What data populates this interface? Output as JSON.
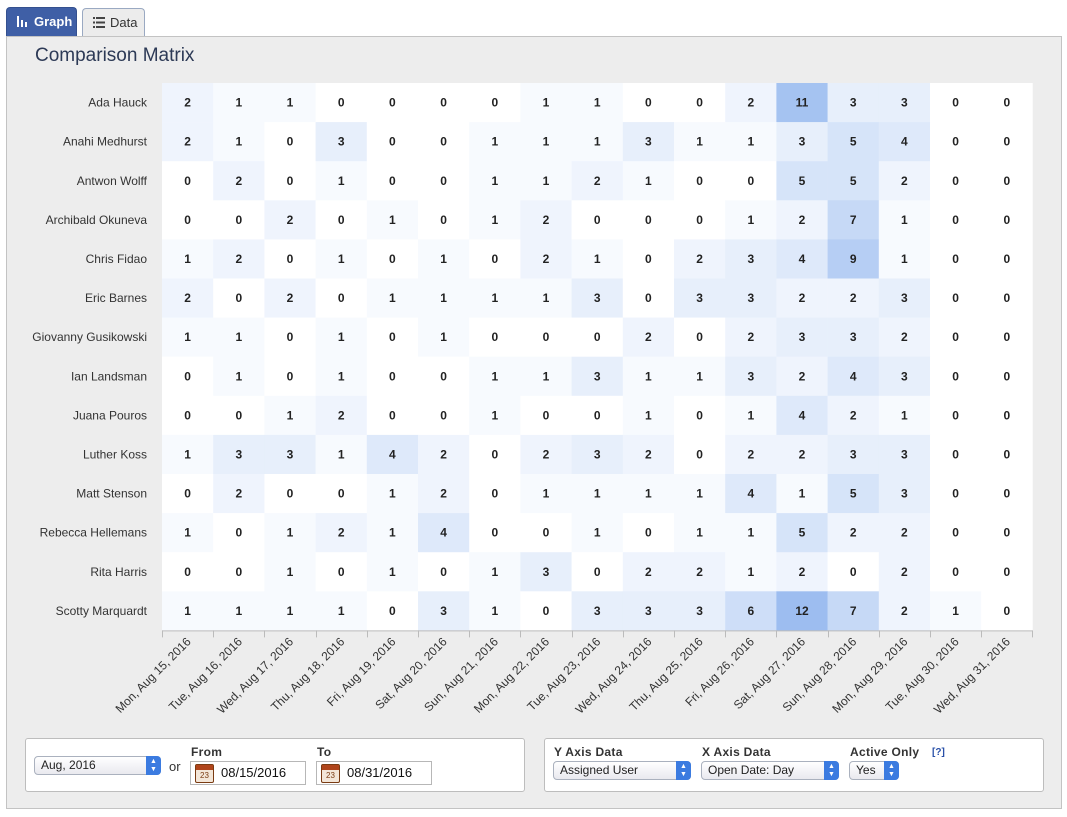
{
  "tabs": [
    {
      "label": "Graph",
      "icon": "bar-chart-icon",
      "active": true
    },
    {
      "label": "Data",
      "icon": "list-icon",
      "active": false
    }
  ],
  "colors": {
    "cell_max": "#9dbdf0",
    "cell_min": "#ffffff",
    "active_tab": "#3f5fa6",
    "select_arrow": "#3b7be0"
  },
  "chart_data": {
    "type": "heatmap",
    "title": "Comparison Matrix",
    "rows": [
      "Ada Hauck",
      "Anahi Medhurst",
      "Antwon Wolff",
      "Archibald Okuneva",
      "Chris Fidao",
      "Eric Barnes",
      "Giovanny Gusikowski",
      "Ian Landsman",
      "Juana Pouros",
      "Luther Koss",
      "Matt Stenson",
      "Rebecca Hellemans",
      "Rita Harris",
      "Scotty Marquardt"
    ],
    "columns": [
      "Mon, Aug 15, 2016",
      "Tue, Aug 16, 2016",
      "Wed, Aug 17, 2016",
      "Thu, Aug 18, 2016",
      "Fri, Aug 19, 2016",
      "Sat, Aug 20, 2016",
      "Sun, Aug 21, 2016",
      "Mon, Aug 22, 2016",
      "Tue, Aug 23, 2016",
      "Wed, Aug 24, 2016",
      "Thu, Aug 25, 2016",
      "Fri, Aug 26, 2016",
      "Sat, Aug 27, 2016",
      "Sun, Aug 28, 2016",
      "Mon, Aug 29, 2016",
      "Tue, Aug 30, 2016",
      "Wed, Aug 31, 2016"
    ],
    "values": [
      [
        2,
        1,
        1,
        0,
        0,
        0,
        0,
        1,
        1,
        0,
        0,
        2,
        11,
        3,
        3,
        0,
        0
      ],
      [
        2,
        1,
        0,
        3,
        0,
        0,
        1,
        1,
        1,
        3,
        1,
        1,
        3,
        5,
        4,
        0,
        0
      ],
      [
        0,
        2,
        0,
        1,
        0,
        0,
        1,
        1,
        2,
        1,
        0,
        0,
        5,
        5,
        2,
        0,
        0
      ],
      [
        0,
        0,
        2,
        0,
        1,
        0,
        1,
        2,
        0,
        0,
        0,
        1,
        2,
        7,
        1,
        0,
        0
      ],
      [
        1,
        2,
        0,
        1,
        0,
        1,
        0,
        2,
        1,
        0,
        2,
        3,
        4,
        9,
        1,
        0,
        0
      ],
      [
        2,
        0,
        2,
        0,
        1,
        1,
        1,
        1,
        3,
        0,
        3,
        3,
        2,
        2,
        3,
        0,
        0
      ],
      [
        1,
        1,
        0,
        1,
        0,
        1,
        0,
        0,
        0,
        2,
        0,
        2,
        3,
        3,
        2,
        0,
        0
      ],
      [
        0,
        1,
        0,
        1,
        0,
        0,
        1,
        1,
        3,
        1,
        1,
        3,
        2,
        4,
        3,
        0,
        0
      ],
      [
        0,
        0,
        1,
        2,
        0,
        0,
        1,
        0,
        0,
        1,
        0,
        1,
        4,
        2,
        1,
        0,
        0
      ],
      [
        1,
        3,
        3,
        1,
        4,
        2,
        0,
        2,
        3,
        2,
        0,
        2,
        2,
        3,
        3,
        0,
        0
      ],
      [
        0,
        2,
        0,
        0,
        1,
        2,
        0,
        1,
        1,
        1,
        1,
        4,
        1,
        5,
        3,
        0,
        0
      ],
      [
        1,
        0,
        1,
        2,
        1,
        4,
        0,
        0,
        1,
        0,
        1,
        1,
        5,
        2,
        2,
        0,
        0
      ],
      [
        0,
        0,
        1,
        0,
        1,
        0,
        1,
        3,
        0,
        2,
        2,
        1,
        2,
        0,
        2,
        0,
        0
      ],
      [
        1,
        1,
        1,
        1,
        0,
        3,
        1,
        0,
        3,
        3,
        3,
        6,
        12,
        7,
        2,
        1,
        0
      ]
    ]
  },
  "controls": {
    "period": {
      "value": "Aug, 2016"
    },
    "or_label": "or",
    "from": {
      "label": "From",
      "value": "08/15/2016",
      "cal_day": "23"
    },
    "to": {
      "label": "To",
      "value": "08/31/2016",
      "cal_day": "23"
    },
    "y_axis": {
      "label": "Y Axis Data",
      "value": "Assigned User"
    },
    "x_axis": {
      "label": "X Axis Data",
      "value": "Open Date: Day"
    },
    "active_only": {
      "label": "Active Only",
      "help": "[?]",
      "value": "Yes"
    }
  }
}
